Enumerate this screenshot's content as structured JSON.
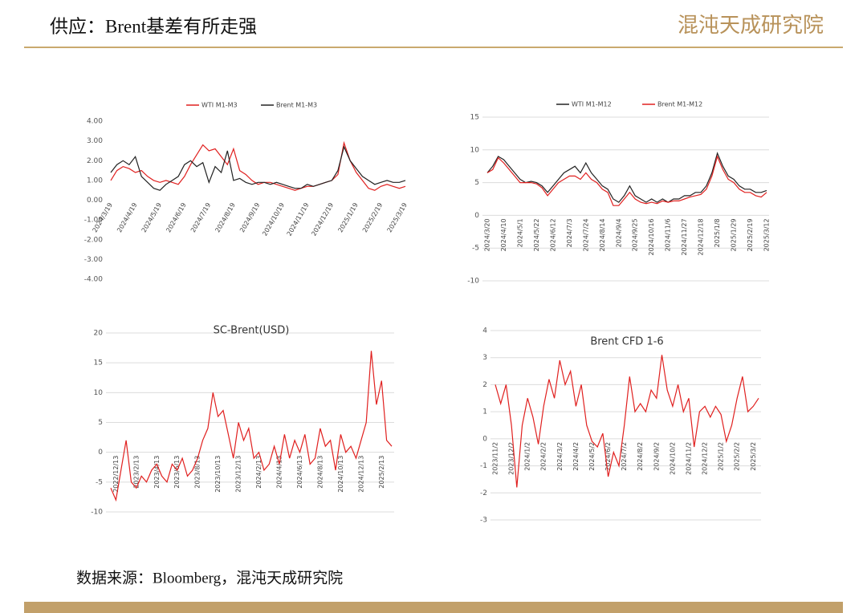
{
  "header": {
    "title": "供应：Brent基差有所走强",
    "logo": "混沌天成研究院"
  },
  "source": "数据来源：Bloomberg，混沌天成研究院",
  "chart_data": [
    {
      "type": "line",
      "grid": false,
      "legend": "top",
      "categories": [
        "2024/3/19",
        null,
        null,
        null,
        "2024/4/19",
        null,
        null,
        null,
        "2024/5/19",
        null,
        null,
        null,
        "2024/6/19",
        null,
        null,
        null,
        "2024/7/19",
        null,
        null,
        null,
        "2024/8/19",
        null,
        null,
        null,
        "2024/9/19",
        null,
        null,
        null,
        "2024/10/19",
        null,
        null,
        null,
        "2024/11/19",
        null,
        null,
        null,
        "2024/12/19",
        null,
        null,
        null,
        "2025/1/19",
        null,
        null,
        null,
        "2025/2/19",
        null,
        null,
        null,
        "2025/3/19"
      ],
      "series": [
        {
          "name": "WTI M1-M3",
          "color": "#e0201f",
          "values": [
            1.0,
            1.5,
            1.7,
            1.6,
            1.4,
            1.5,
            1.2,
            1.0,
            0.9,
            1.0,
            0.9,
            0.8,
            1.2,
            1.8,
            2.3,
            2.8,
            2.5,
            2.6,
            2.2,
            1.8,
            2.6,
            1.5,
            1.3,
            1.0,
            0.8,
            0.9,
            0.9,
            0.8,
            0.7,
            0.6,
            0.5,
            0.6,
            0.7,
            0.7,
            0.8,
            0.9,
            1.0,
            1.3,
            2.9,
            2.0,
            1.4,
            1.0,
            0.6,
            0.5,
            0.7,
            0.8,
            0.7,
            0.6,
            0.7
          ]
        },
        {
          "name": "Brent M1-M3",
          "color": "#222222",
          "values": [
            1.4,
            1.8,
            2.0,
            1.8,
            2.2,
            1.2,
            0.9,
            0.6,
            0.5,
            0.8,
            1.0,
            1.2,
            1.8,
            2.0,
            1.7,
            1.9,
            0.9,
            1.7,
            1.4,
            2.5,
            1.0,
            1.1,
            0.9,
            0.8,
            0.9,
            0.9,
            0.8,
            0.9,
            0.8,
            0.7,
            0.6,
            0.6,
            0.8,
            0.7,
            0.8,
            0.9,
            1.0,
            1.5,
            2.7,
            2.0,
            1.6,
            1.2,
            1.0,
            0.8,
            0.9,
            1.0,
            0.9,
            0.9,
            1.0
          ]
        }
      ],
      "ylim": [
        -4,
        4
      ],
      "yticks": [
        {
          "value": -4,
          "label": "-4.00"
        },
        {
          "value": -3,
          "label": "-3.00"
        },
        {
          "value": -2,
          "label": "-2.00"
        },
        {
          "value": -1,
          "label": "-1.00"
        },
        {
          "value": 0,
          "label": "0.00"
        },
        {
          "value": 1,
          "label": "1.00"
        },
        {
          "value": 2,
          "label": "2.00"
        },
        {
          "value": 3,
          "label": "3.00"
        },
        {
          "value": 4,
          "label": "4.00"
        }
      ]
    },
    {
      "type": "line",
      "grid": true,
      "legend": "top",
      "categories": [
        "2024/3/20",
        null,
        null,
        "2024/4/10",
        null,
        null,
        "2024/5/1",
        null,
        null,
        "2024/5/22",
        null,
        null,
        "2024/6/12",
        null,
        null,
        "2024/7/3",
        null,
        null,
        "2024/7/24",
        null,
        null,
        "2024/8/14",
        null,
        null,
        "2024/9/4",
        null,
        null,
        "2024/9/25",
        null,
        null,
        "2024/10/16",
        null,
        null,
        "2024/11/6",
        null,
        null,
        "2024/11/27",
        null,
        null,
        "2024/12/18",
        null,
        null,
        "2025/1/8",
        null,
        null,
        "2025/1/29",
        null,
        null,
        "2025/2/19",
        null,
        null,
        "2025/3/12"
      ],
      "series": [
        {
          "name": "WTI M1-M12",
          "color": "#222222",
          "values": [
            6.5,
            7.5,
            9.0,
            8.5,
            7.5,
            6.5,
            5.5,
            5.0,
            5.2,
            5.0,
            4.5,
            3.5,
            4.5,
            5.5,
            6.5,
            7.0,
            7.5,
            6.5,
            8.0,
            6.5,
            5.5,
            4.5,
            4.0,
            2.5,
            2.0,
            3.0,
            4.5,
            3.0,
            2.5,
            2.0,
            2.5,
            2.0,
            2.5,
            2.0,
            2.5,
            2.5,
            3.0,
            3.0,
            3.5,
            3.5,
            4.5,
            6.5,
            9.5,
            7.5,
            6.0,
            5.5,
            4.5,
            4.0,
            4.0,
            3.5,
            3.5,
            3.8
          ]
        },
        {
          "name": "Brent M1-M12",
          "color": "#e0201f",
          "values": [
            6.5,
            7.0,
            8.8,
            8.0,
            7.0,
            6.0,
            5.0,
            5.0,
            5.0,
            4.8,
            4.2,
            3.0,
            4.0,
            5.0,
            5.5,
            6.0,
            6.0,
            5.5,
            6.5,
            5.5,
            5.0,
            4.0,
            3.5,
            1.5,
            1.5,
            2.5,
            3.5,
            2.5,
            2.0,
            1.8,
            2.0,
            1.8,
            2.2,
            2.0,
            2.2,
            2.2,
            2.5,
            2.8,
            3.0,
            3.2,
            4.0,
            6.0,
            9.0,
            7.0,
            5.5,
            5.0,
            4.0,
            3.5,
            3.5,
            3.0,
            2.8,
            3.5
          ]
        }
      ],
      "ylim": [
        -10,
        15
      ],
      "yticks": [
        -10,
        -5,
        0,
        5,
        10,
        15
      ]
    },
    {
      "type": "line",
      "grid": true,
      "title": "SC-Brent(USD)",
      "color": "#e0201f",
      "categories": [
        null,
        "2022/12/13",
        null,
        null,
        null,
        "2023/2/13",
        null,
        null,
        null,
        "2023/4/13",
        null,
        null,
        null,
        "2023/6/13",
        null,
        null,
        null,
        "2023/8/13",
        null,
        null,
        null,
        "2023/10/13",
        null,
        null,
        null,
        "2023/12/13",
        null,
        null,
        null,
        "2024/2/13",
        null,
        null,
        null,
        "2024/4/13",
        null,
        null,
        null,
        "2024/6/13",
        null,
        null,
        null,
        "2024/8/13",
        null,
        null,
        null,
        "2024/10/13",
        null,
        null,
        null,
        "2024/12/13",
        null,
        null,
        null,
        "2025/2/13",
        null,
        null
      ],
      "values": [
        -6,
        -8,
        -3,
        2,
        -5,
        -6,
        -4,
        -5,
        -3,
        -2,
        -4,
        -5,
        -2,
        -3,
        -1,
        -4,
        -3,
        -1,
        2,
        4,
        10,
        6,
        7,
        3,
        -1,
        5,
        2,
        4,
        -1,
        0,
        -3,
        -2,
        1,
        -2,
        3,
        -1,
        2,
        0,
        3,
        -2,
        -1,
        4,
        1,
        2,
        -3,
        3,
        0,
        1,
        -1,
        2,
        5,
        17,
        8,
        12,
        2,
        1
      ],
      "ylim": [
        -10,
        20
      ],
      "yticks": [
        -10,
        -5,
        0,
        5,
        10,
        15,
        20
      ]
    },
    {
      "type": "line",
      "grid": true,
      "title": "Brent CFD 1-6",
      "color": "#e0201f",
      "categories": [
        "2023/11/2",
        null,
        null,
        "2023/12/2",
        null,
        null,
        "2024/1/2",
        null,
        null,
        "2024/2/2",
        null,
        null,
        "2024/3/2",
        null,
        null,
        "2024/4/2",
        null,
        null,
        "2024/5/2",
        null,
        null,
        "2024/6/2",
        null,
        null,
        "2024/7/2",
        null,
        null,
        "2024/8/2",
        null,
        null,
        "2024/9/2",
        null,
        null,
        "2024/10/2",
        null,
        null,
        "2024/11/2",
        null,
        null,
        "2024/12/2",
        null,
        null,
        "2025/1/2",
        null,
        null,
        "2025/2/2",
        null,
        null,
        "2025/3/2",
        null
      ],
      "values": [
        2.0,
        1.3,
        2.0,
        0.5,
        -1.8,
        0.5,
        1.5,
        0.8,
        -0.2,
        1.2,
        2.2,
        1.5,
        2.9,
        2.0,
        2.5,
        1.2,
        2.0,
        0.5,
        -0.1,
        -0.3,
        0.2,
        -1.4,
        -0.5,
        -1.0,
        0.5,
        2.3,
        1.0,
        1.3,
        1.0,
        1.8,
        1.5,
        3.1,
        1.8,
        1.2,
        2.0,
        1.0,
        1.5,
        -0.3,
        1.0,
        1.2,
        0.8,
        1.2,
        0.9,
        -0.1,
        0.5,
        1.5,
        2.3,
        1.0,
        1.2,
        1.5
      ],
      "ylim": [
        -3,
        4
      ],
      "yticks": [
        -3,
        -2,
        -1,
        0,
        1,
        2,
        3,
        4
      ]
    }
  ]
}
